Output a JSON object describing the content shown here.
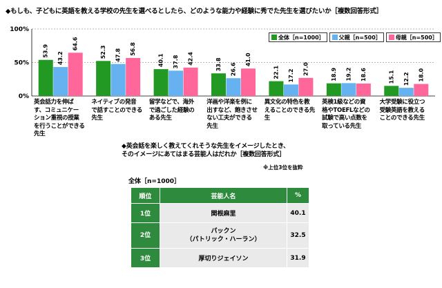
{
  "question1": "◆もしも、子どもに英語を教える学校の先生を選べるとしたら、どのような能力や経験に秀でた先生を選びたいか［複数回答形式］",
  "colors": {
    "all": "#229922",
    "father": "#66b2f0",
    "mother": "#ff6699",
    "table_header": "#2e8a3c",
    "table_cell": "#eaeaea"
  },
  "chart_data": {
    "type": "bar",
    "ylim": [
      0,
      100
    ],
    "yticks": [
      "0%",
      "50%",
      "100%"
    ],
    "legend_position": "top-right",
    "categories": [
      "英会話力を伸ばす、コミュニケーション重視の授業を行うことができる先生",
      "ネイティブの発音で話すことのできる先生",
      "留学などで、海外で過ごした経験のある先生",
      "洋画や洋楽を例に出すなど、飽きさせない工夫ができる先生",
      "異文化の特色を教えることのできる先生",
      "英検1級などの資格やTOEFLなどの試験で高い点数を取っている先生",
      "大学受験に役立つ受験英語を教えることのできる先生"
    ],
    "series": [
      {
        "name": "全体［n=1000］",
        "values": [
          53.9,
          52.3,
          40.1,
          33.8,
          22.1,
          18.9,
          15.1
        ]
      },
      {
        "name": "父親［n=500］",
        "values": [
          43.2,
          47.8,
          37.8,
          26.6,
          17.2,
          19.2,
          12.2
        ]
      },
      {
        "name": "母親［n=500］",
        "values": [
          64.6,
          56.8,
          42.4,
          41.0,
          27.0,
          18.6,
          18.0
        ]
      }
    ]
  },
  "category_lines": [
    [
      "英会話力を伸ば",
      "す、コミュニケー",
      "ション重視の授業",
      "を行うことができる",
      "先生"
    ],
    [
      "ネイティブの発音",
      "で話すことのできる",
      "先生"
    ],
    [
      "留学などで、海外",
      "で過ごした経験の",
      "ある先生"
    ],
    [
      "洋画や洋楽を例に",
      "出すなど、飽きさせ",
      "ない工夫ができる",
      "先生"
    ],
    [
      "異文化の特色を教",
      "えることのできる先生"
    ],
    [
      "英検1級などの資",
      "格やTOEFLなどの",
      "試験で高い点数を",
      "取っている先生"
    ],
    [
      "大学受験に役立つ",
      "受験英語を教える",
      "ことのできる先生"
    ]
  ],
  "question2": {
    "line1": "◆英会話を楽しく教えてくれそうな先生をイメージしたとき、",
    "line2": "そのイメージにあてはまる芸能人はだれか［複数回答形式］"
  },
  "note": "※上位3位を抜粋",
  "base": "全体［n=1000］",
  "table": {
    "headers": [
      "順位",
      "芸能人名",
      "%"
    ],
    "rows": [
      {
        "rank": "1位",
        "name_line1": "関根麻里",
        "name_line2": "",
        "pct": "40.1"
      },
      {
        "rank": "2位",
        "name_line1": "パックン",
        "name_line2": "（パトリック・ハーラン）",
        "pct": "32.5"
      },
      {
        "rank": "3位",
        "name_line1": "厚切りジェイソン",
        "name_line2": "",
        "pct": "31.9"
      }
    ]
  }
}
